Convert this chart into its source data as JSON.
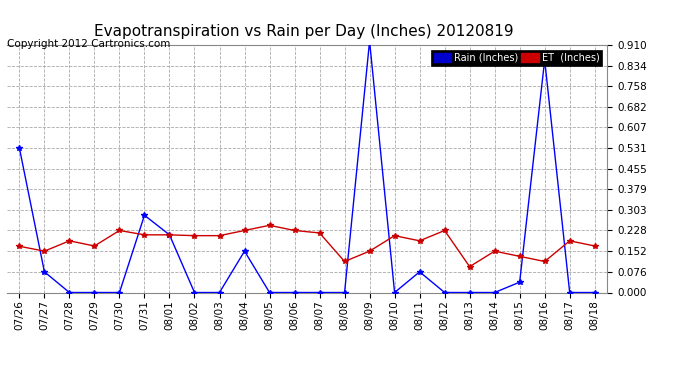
{
  "title": "Evapotranspiration vs Rain per Day (Inches) 20120819",
  "copyright": "Copyright 2012 Cartronics.com",
  "x_labels": [
    "07/26",
    "07/27",
    "07/28",
    "07/29",
    "07/30",
    "07/31",
    "08/01",
    "08/02",
    "08/03",
    "08/04",
    "08/05",
    "08/06",
    "08/07",
    "08/08",
    "08/09",
    "08/10",
    "08/11",
    "08/12",
    "08/13",
    "08/14",
    "08/15",
    "08/16",
    "08/17",
    "08/18"
  ],
  "rain_values": [
    0.531,
    0.076,
    0.0,
    0.0,
    0.0,
    0.284,
    0.212,
    0.0,
    0.0,
    0.152,
    0.0,
    0.0,
    0.0,
    0.0,
    0.924,
    0.0,
    0.076,
    0.0,
    0.0,
    0.0,
    0.038,
    0.855,
    0.0,
    0.0
  ],
  "et_values": [
    0.17,
    0.152,
    0.19,
    0.171,
    0.228,
    0.212,
    0.212,
    0.209,
    0.209,
    0.228,
    0.247,
    0.228,
    0.219,
    0.114,
    0.152,
    0.209,
    0.19,
    0.228,
    0.095,
    0.152,
    0.133,
    0.114,
    0.19,
    0.171
  ],
  "rain_color": "#0000ff",
  "et_color": "#cc0000",
  "background_color": "#ffffff",
  "grid_color": "#aaaaaa",
  "y_ticks": [
    0.0,
    0.076,
    0.152,
    0.228,
    0.303,
    0.379,
    0.455,
    0.531,
    0.607,
    0.682,
    0.758,
    0.834,
    0.91
  ],
  "y_min": 0.0,
  "y_max": 0.91,
  "legend_rain_label": "Rain (Inches)",
  "legend_et_label": "ET  (Inches)",
  "legend_rain_bg": "#0000cc",
  "legend_et_bg": "#cc0000",
  "title_fontsize": 11,
  "copyright_fontsize": 7.5,
  "tick_fontsize": 7.5,
  "marker": "*",
  "marker_size": 4
}
